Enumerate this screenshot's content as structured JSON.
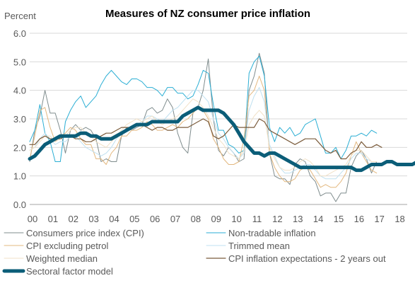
{
  "chart_data": {
    "type": "line",
    "title": "Measures of NZ consumer price inflation",
    "ylabel": "Percent",
    "xlabel": "",
    "ylim": [
      0,
      6
    ],
    "yticks": [
      "0.0",
      "1.0",
      "2.0",
      "3.0",
      "4.0",
      "5.0",
      "6.0"
    ],
    "x_start": 2000,
    "x_step": 0.25,
    "xtick_labels": [
      "00",
      "01",
      "02",
      "03",
      "04",
      "05",
      "06",
      "07",
      "08",
      "09",
      "10",
      "11",
      "12",
      "13",
      "14",
      "15",
      "16",
      "17",
      "18"
    ],
    "grid": "horizontal",
    "legend_position": "bottom",
    "series": [
      {
        "name": "Consumers price index (CPI)",
        "color": "#7f8c8d",
        "width": 1,
        "values": [
          1.5,
          2.6,
          3.1,
          4.0,
          3.2,
          3.2,
          2.6,
          1.8,
          2.6,
          2.8,
          2.6,
          2.7,
          2.6,
          2.3,
          1.5,
          1.6,
          1.5,
          1.5,
          2.4,
          2.7,
          2.6,
          2.7,
          2.8,
          3.3,
          3.4,
          3.2,
          3.3,
          3.7,
          3.4,
          2.5,
          2.0,
          1.8,
          3.2,
          3.4,
          4.0,
          5.1,
          3.0,
          1.9,
          1.7,
          2.0,
          1.8,
          1.5,
          1.6,
          4.0,
          4.5,
          5.3,
          4.6,
          1.8,
          1.0,
          0.9,
          0.9,
          0.7,
          1.4,
          1.6,
          1.5,
          1.0,
          0.8,
          0.3,
          0.4,
          0.4,
          0.1,
          0.4,
          0.4,
          1.3,
          1.7,
          1.9,
          1.6,
          1.1,
          1.5
        ]
      },
      {
        "name": "Non-tradable inflation",
        "color": "#2aaed4",
        "width": 1,
        "values": [
          2.2,
          2.6,
          3.5,
          2.5,
          2.2,
          1.5,
          1.5,
          2.9,
          3.3,
          3.6,
          3.8,
          3.4,
          3.6,
          3.8,
          4.2,
          4.5,
          4.7,
          4.5,
          4.3,
          4.2,
          4.4,
          4.4,
          4.3,
          4.1,
          4.1,
          4.0,
          3.8,
          4.1,
          4.1,
          3.9,
          3.9,
          3.7,
          3.8,
          4.2,
          4.7,
          4.6,
          3.5,
          2.6,
          2.6,
          2.1,
          2.0,
          1.8,
          1.9,
          4.6,
          5.0,
          5.2,
          4.5,
          2.7,
          2.2,
          2.7,
          2.5,
          2.7,
          2.4,
          2.5,
          2.8,
          2.9,
          3.0,
          2.4,
          1.8,
          1.8,
          2.0,
          1.6,
          1.9,
          2.4,
          2.4,
          2.5,
          2.4,
          2.6,
          2.5
        ]
      },
      {
        "name": "CPI excluding petrol",
        "color": "#e3b87f",
        "width": 1,
        "values": [
          1.6,
          2.4,
          3.3,
          3.4,
          2.7,
          2.2,
          2.4,
          2.5,
          2.7,
          2.6,
          2.3,
          2.1,
          2.1,
          1.6,
          1.6,
          1.4,
          1.8,
          2.0,
          2.4,
          2.4,
          2.6,
          2.6,
          2.7,
          2.9,
          2.8,
          2.6,
          2.6,
          2.7,
          2.8,
          2.7,
          2.9,
          3.0,
          3.2,
          3.4,
          3.3,
          3.0,
          2.3,
          2.0,
          1.6,
          1.4,
          1.4,
          1.5,
          2.3,
          3.8,
          4.0,
          4.5,
          4.0,
          1.8,
          1.3,
          1.0,
          0.8,
          0.8,
          0.9,
          1.2,
          1.3,
          1.2,
          0.9,
          0.6,
          0.7,
          0.6,
          0.6,
          0.8,
          1.1,
          1.7,
          2.2,
          1.8,
          1.5,
          1.2,
          1.1
        ]
      },
      {
        "name": "Trimmed mean",
        "color": "#bfe0f0",
        "width": 1,
        "values": [
          1.9,
          2.0,
          2.3,
          2.5,
          2.3,
          2.1,
          2.2,
          2.2,
          2.4,
          2.4,
          2.2,
          2.0,
          1.9,
          1.8,
          1.7,
          1.8,
          2.0,
          2.3,
          2.5,
          2.6,
          2.7,
          2.8,
          2.9,
          3.1,
          3.1,
          3.0,
          2.9,
          3.1,
          3.3,
          3.4,
          3.6,
          3.8,
          4.0,
          4.0,
          3.8,
          3.6,
          3.0,
          2.5,
          2.3,
          2.0,
          1.8,
          1.6,
          1.8,
          3.3,
          3.8,
          4.1,
          3.6,
          2.1,
          1.7,
          1.3,
          1.1,
          1.1,
          1.2,
          1.3,
          1.4,
          1.4,
          1.2,
          1.0,
          0.9,
          0.9,
          0.9,
          1.1,
          1.3,
          1.6,
          1.8,
          1.8,
          1.6,
          1.5,
          1.5
        ]
      },
      {
        "name": "Weighted median",
        "color": "#f1e1c7",
        "width": 1,
        "values": [
          1.9,
          2.0,
          2.2,
          2.4,
          2.4,
          2.2,
          2.3,
          2.4,
          2.6,
          2.7,
          2.7,
          2.5,
          2.4,
          2.2,
          2.1,
          2.0,
          2.2,
          2.4,
          2.6,
          2.8,
          2.9,
          3.0,
          2.9,
          3.0,
          3.1,
          2.9,
          2.8,
          2.9,
          3.0,
          3.1,
          3.3,
          3.5,
          3.7,
          3.6,
          3.4,
          3.1,
          2.7,
          2.3,
          2.1,
          1.8,
          1.7,
          1.6,
          1.9,
          2.8,
          3.1,
          3.3,
          3.1,
          2.0,
          1.6,
          1.3,
          1.2,
          1.2,
          1.3,
          1.5,
          1.6,
          1.5,
          1.3,
          1.0,
          1.0,
          1.1,
          1.2,
          1.3,
          1.4,
          1.7,
          1.9,
          1.9,
          1.7,
          1.5,
          1.5
        ]
      },
      {
        "name": "CPI inflation expectations - 2 years out",
        "color": "#7b5c3c",
        "width": 1.2,
        "values": [
          2.1,
          2.1,
          2.3,
          2.4,
          2.3,
          2.3,
          2.3,
          2.4,
          2.4,
          2.3,
          2.3,
          2.2,
          2.2,
          2.3,
          2.4,
          2.5,
          2.5,
          2.6,
          2.7,
          2.7,
          2.7,
          2.8,
          2.8,
          2.7,
          2.6,
          2.7,
          2.7,
          2.6,
          2.6,
          2.7,
          2.7,
          2.7,
          2.8,
          2.9,
          3.0,
          2.9,
          2.4,
          2.3,
          2.4,
          2.6,
          2.8,
          2.7,
          2.7,
          2.7,
          2.7,
          3.0,
          2.9,
          2.6,
          2.5,
          2.4,
          2.3,
          2.2,
          2.1,
          2.2,
          2.3,
          2.3,
          2.3,
          2.1,
          1.9,
          1.8,
          1.9,
          1.6,
          1.6,
          1.8,
          1.9,
          2.2,
          2.0,
          2.0,
          2.1,
          2.0
        ]
      },
      {
        "name": "Sectoral factor model",
        "color": "#0b5d78",
        "width": 5,
        "values": [
          1.6,
          1.7,
          1.9,
          2.1,
          2.2,
          2.3,
          2.4,
          2.4,
          2.4,
          2.4,
          2.5,
          2.5,
          2.4,
          2.4,
          2.3,
          2.3,
          2.3,
          2.4,
          2.5,
          2.6,
          2.7,
          2.8,
          2.8,
          2.8,
          2.9,
          2.9,
          2.9,
          2.9,
          2.9,
          2.9,
          3.1,
          3.2,
          3.3,
          3.4,
          3.3,
          3.3,
          3.3,
          3.3,
          3.2,
          3.0,
          2.8,
          2.5,
          2.2,
          2.0,
          1.8,
          1.8,
          1.7,
          1.8,
          1.8,
          1.7,
          1.6,
          1.5,
          1.4,
          1.3,
          1.3,
          1.3,
          1.3,
          1.3,
          1.3,
          1.3,
          1.3,
          1.3,
          1.3,
          1.3,
          1.2,
          1.2,
          1.3,
          1.4,
          1.4,
          1.4,
          1.5,
          1.5,
          1.4,
          1.4,
          1.4,
          1.4,
          1.5,
          1.6,
          1.7
        ]
      }
    ]
  }
}
